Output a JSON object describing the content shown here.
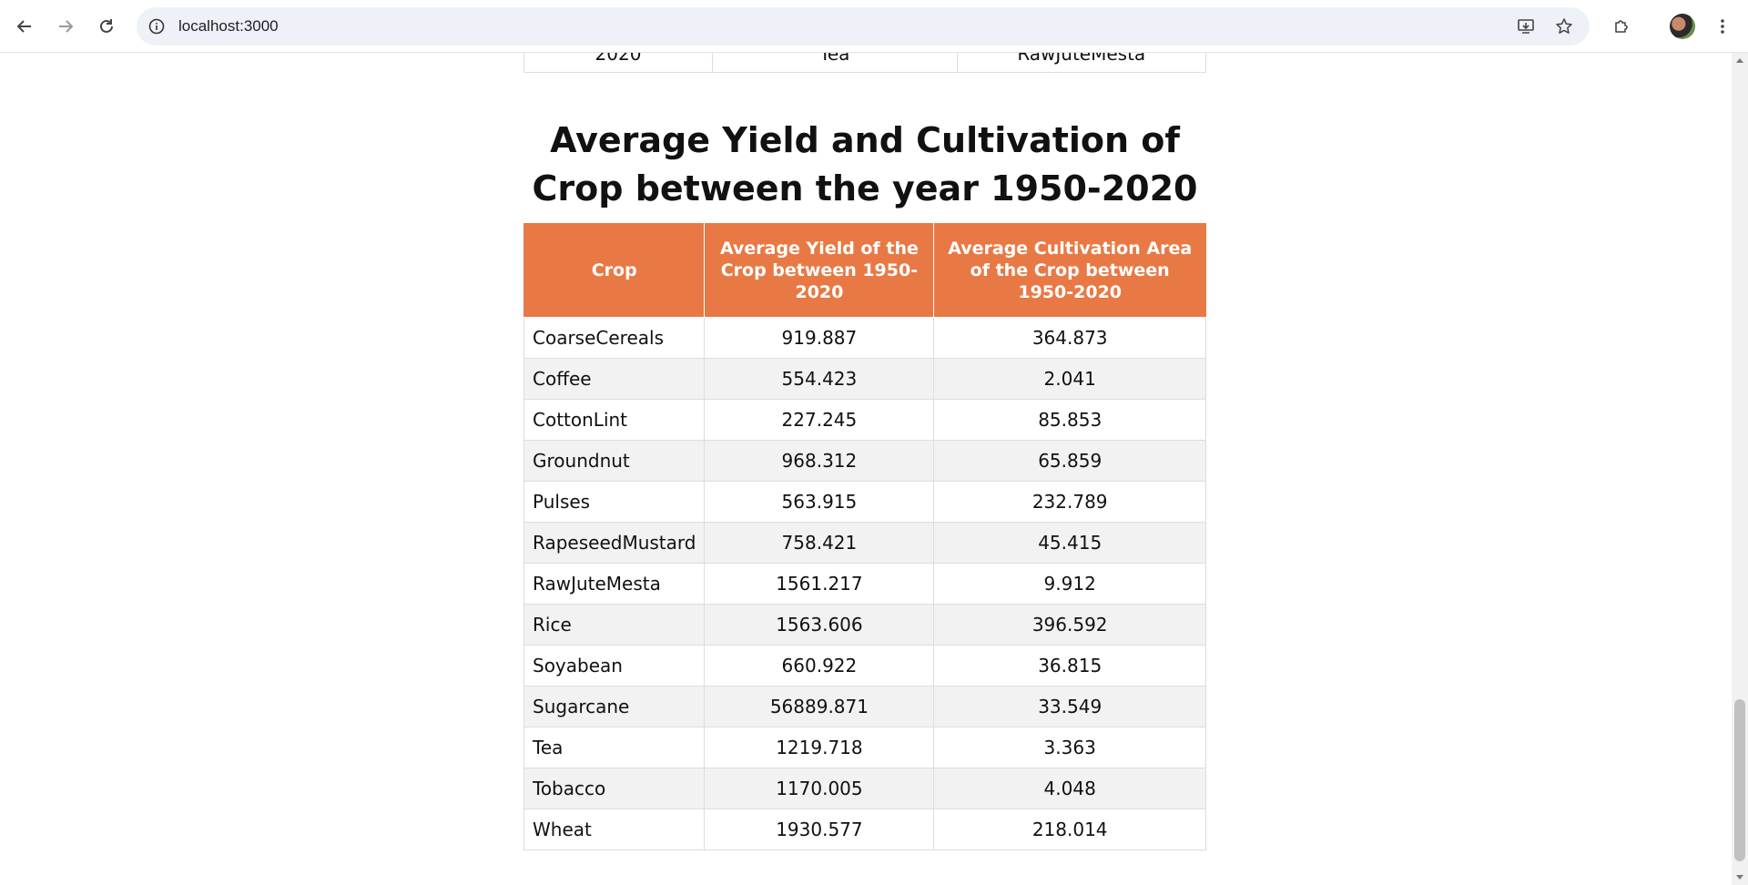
{
  "browser": {
    "url": "localhost:3000"
  },
  "previous_table": {
    "cells": [
      "2020",
      "Tea",
      "RawJuteMesta"
    ]
  },
  "section": {
    "title": "Average Yield and Cultivation of Crop between the year 1950-2020"
  },
  "table": {
    "headers": [
      "Crop",
      "Average Yield of the Crop between 1950-2020",
      "Average Cultivation Area of the Crop between 1950-2020"
    ],
    "rows": [
      {
        "crop": "CoarseCereals",
        "yield": "919.887",
        "area": "364.873"
      },
      {
        "crop": "Coffee",
        "yield": "554.423",
        "area": "2.041"
      },
      {
        "crop": "CottonLint",
        "yield": "227.245",
        "area": "85.853"
      },
      {
        "crop": "Groundnut",
        "yield": "968.312",
        "area": "65.859"
      },
      {
        "crop": "Pulses",
        "yield": "563.915",
        "area": "232.789"
      },
      {
        "crop": "RapeseedMustard",
        "yield": "758.421",
        "area": "45.415"
      },
      {
        "crop": "RawJuteMesta",
        "yield": "1561.217",
        "area": "9.912"
      },
      {
        "crop": "Rice",
        "yield": "1563.606",
        "area": "396.592"
      },
      {
        "crop": "Soyabean",
        "yield": "660.922",
        "area": "36.815"
      },
      {
        "crop": "Sugarcane",
        "yield": "56889.871",
        "area": "33.549"
      },
      {
        "crop": "Tea",
        "yield": "1219.718",
        "area": "3.363"
      },
      {
        "crop": "Tobacco",
        "yield": "1170.005",
        "area": "4.048"
      },
      {
        "crop": "Wheat",
        "yield": "1930.577",
        "area": "218.014"
      }
    ]
  },
  "colors": {
    "header_bg": "#e87945",
    "stripe_bg": "#f2f2f2"
  },
  "icons": {
    "back": "arrow-left-icon",
    "forward": "arrow-right-icon",
    "reload": "reload-icon",
    "site_info": "info-icon",
    "install": "install-icon",
    "bookmark": "star-icon",
    "extensions": "puzzle-icon",
    "menu": "more-vert-icon"
  }
}
